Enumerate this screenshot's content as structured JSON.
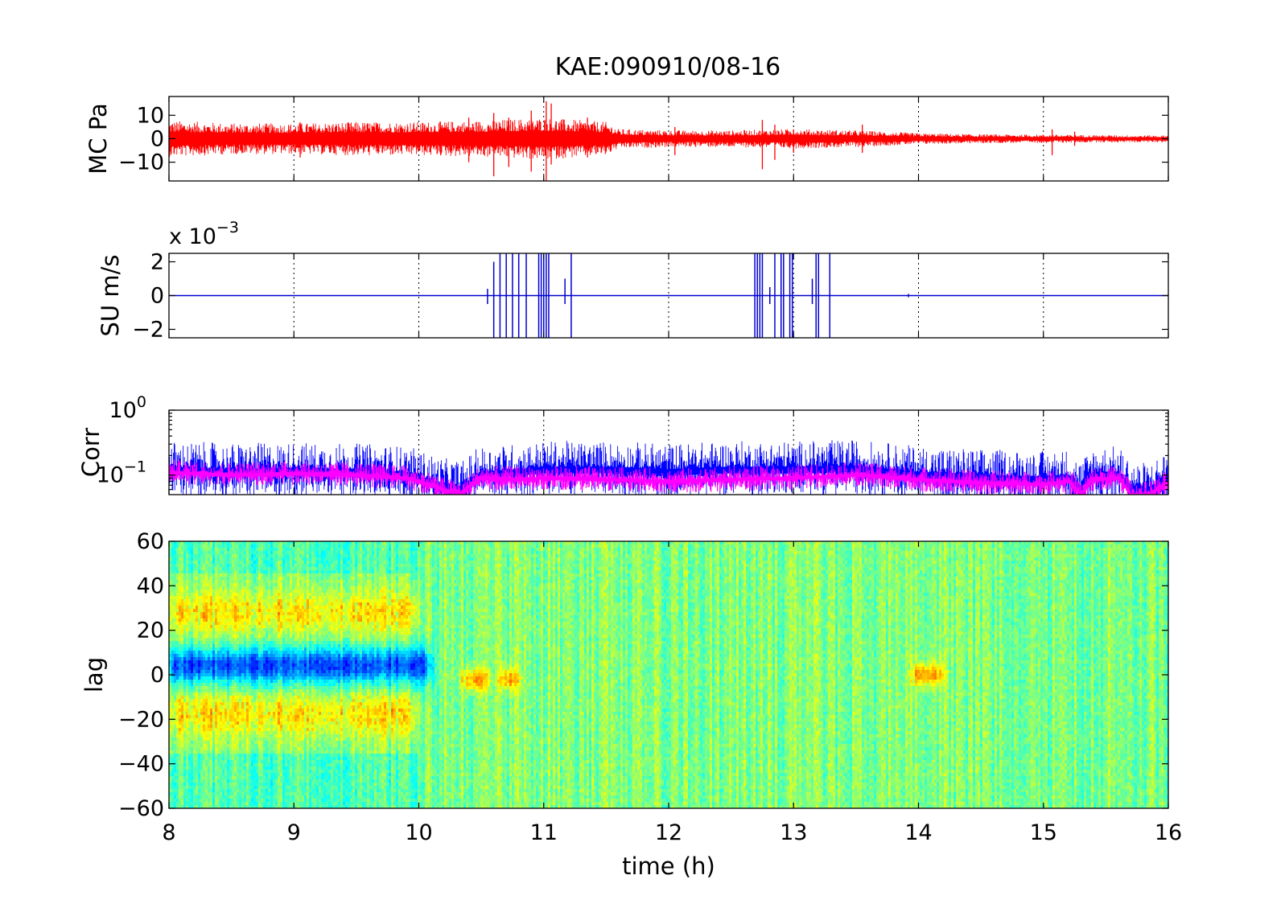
{
  "title": "KAE:090910/08-16",
  "xaxis": {
    "label": "time (h)",
    "range": [
      8,
      16
    ],
    "ticks": [
      "8",
      "9",
      "10",
      "11",
      "12",
      "13",
      "14",
      "15",
      "16"
    ]
  },
  "chart_data": [
    {
      "type": "line",
      "name": "mc-pressure-panel",
      "ylabel": "MC Pa",
      "ylim": [
        -18,
        18
      ],
      "yticks": [
        -10,
        0,
        10
      ],
      "yticklabels": [
        "−10",
        "0",
        "10"
      ],
      "grid": true,
      "color": "#ff0000",
      "envelope": {
        "x": [
          8.0,
          8.5,
          9.0,
          9.5,
          10.0,
          10.5,
          11.0,
          11.5,
          11.6,
          12.0,
          12.5,
          13.0,
          13.5,
          14.0,
          14.5,
          15.0,
          15.5,
          16.0
        ],
        "amplitude": [
          6.5,
          5.5,
          5.5,
          6.0,
          6.0,
          6.5,
          7.5,
          6.0,
          3.5,
          3.0,
          3.0,
          3.5,
          3.0,
          2.0,
          1.6,
          1.5,
          1.3,
          1.2
        ]
      },
      "spikes": [
        {
          "x": 9.05,
          "min": -8,
          "max": 7
        },
        {
          "x": 10.4,
          "min": -10,
          "max": 9
        },
        {
          "x": 10.6,
          "min": -16,
          "max": 11
        },
        {
          "x": 10.72,
          "min": -12,
          "max": 9
        },
        {
          "x": 10.9,
          "min": -14,
          "max": 12
        },
        {
          "x": 11.02,
          "min": -18,
          "max": 16
        },
        {
          "x": 11.06,
          "min": -11,
          "max": 15
        },
        {
          "x": 11.35,
          "min": -8,
          "max": 9
        },
        {
          "x": 12.05,
          "min": -7,
          "max": 5
        },
        {
          "x": 12.75,
          "min": -13,
          "max": 8
        },
        {
          "x": 12.85,
          "min": -9,
          "max": 6
        },
        {
          "x": 13.0,
          "min": -6,
          "max": 4
        },
        {
          "x": 13.55,
          "min": -6,
          "max": 6
        },
        {
          "x": 15.07,
          "min": -7,
          "max": 4
        },
        {
          "x": 15.25,
          "min": -3,
          "max": 3
        }
      ]
    },
    {
      "type": "line",
      "name": "su-velocity-panel",
      "ylabel": "SU m/s",
      "multiplier": "x 10",
      "multiplier_exponent": "−3",
      "ylim": [
        -0.0025,
        0.0025
      ],
      "yticks": [
        -0.002,
        0,
        0.002
      ],
      "yticklabels": [
        "−2",
        "0",
        "2"
      ],
      "grid": true,
      "color": "#0000d0",
      "bursts": [
        {
          "x": 10.55,
          "min": -0.0005,
          "max": 0.0004
        },
        {
          "x": 10.6,
          "min": -0.0025,
          "max": 0.002
        },
        {
          "x": 10.65,
          "min": -0.0025,
          "max": 0.0025
        },
        {
          "x": 10.7,
          "min": -0.0025,
          "max": 0.0025
        },
        {
          "x": 10.75,
          "min": -0.0025,
          "max": 0.0025
        },
        {
          "x": 10.8,
          "min": -0.0025,
          "max": 0.0025
        },
        {
          "x": 10.86,
          "min": -0.0025,
          "max": 0.0025
        },
        {
          "x": 10.96,
          "min": -0.0025,
          "max": 0.0025
        },
        {
          "x": 10.98,
          "min": -0.0025,
          "max": 0.0025
        },
        {
          "x": 11.0,
          "min": -0.0025,
          "max": 0.0025
        },
        {
          "x": 11.02,
          "min": -0.0025,
          "max": 0.0025
        },
        {
          "x": 11.04,
          "min": -0.0025,
          "max": 0.0025
        },
        {
          "x": 11.17,
          "min": -0.0005,
          "max": 0.001
        },
        {
          "x": 11.22,
          "min": -0.0025,
          "max": 0.0025
        },
        {
          "x": 12.69,
          "min": -0.0025,
          "max": 0.0025
        },
        {
          "x": 12.71,
          "min": -0.0025,
          "max": 0.0025
        },
        {
          "x": 12.73,
          "min": -0.0025,
          "max": 0.0025
        },
        {
          "x": 12.75,
          "min": -0.0025,
          "max": 0.0025
        },
        {
          "x": 12.81,
          "min": -0.0005,
          "max": 0.0005
        },
        {
          "x": 12.85,
          "min": -0.0025,
          "max": 0.0025
        },
        {
          "x": 12.9,
          "min": -0.0025,
          "max": 0.0025
        },
        {
          "x": 12.92,
          "min": -0.0025,
          "max": 0.0025
        },
        {
          "x": 12.97,
          "min": -0.0025,
          "max": 0.0025
        },
        {
          "x": 12.99,
          "min": -0.0025,
          "max": 0.0025
        },
        {
          "x": 13.15,
          "min": -0.0005,
          "max": 0.001
        },
        {
          "x": 13.18,
          "min": -0.0025,
          "max": 0.0025
        },
        {
          "x": 13.2,
          "min": -0.0025,
          "max": 0.0025
        },
        {
          "x": 13.29,
          "min": -0.0025,
          "max": 0.0025
        },
        {
          "x": 13.92,
          "min": -0.0001,
          "max": 0.0001
        }
      ]
    },
    {
      "type": "line",
      "name": "corr-panel",
      "ylabel": "Corr",
      "yscale": "log",
      "ylim": [
        0.05,
        1
      ],
      "yticks": [
        0.1,
        1
      ],
      "yticklabel_base": "10",
      "yticklabel_exponents": [
        "−1",
        "0"
      ],
      "grid": true,
      "series": [
        {
          "color": "#0000ff",
          "x": [
            8.0,
            8.5,
            9.0,
            9.5,
            9.9,
            10.1,
            10.2,
            10.35,
            10.5,
            10.8,
            11.0,
            11.5,
            12.0,
            12.5,
            13.0,
            13.5,
            14.0,
            14.5,
            15.0,
            15.2,
            15.3,
            15.4,
            15.6,
            15.7,
            15.85,
            16.0
          ],
          "y": [
            0.12,
            0.11,
            0.115,
            0.11,
            0.1,
            0.075,
            0.065,
            0.06,
            0.1,
            0.11,
            0.12,
            0.12,
            0.11,
            0.12,
            0.12,
            0.125,
            0.1,
            0.09,
            0.085,
            0.09,
            0.06,
            0.1,
            0.1,
            0.06,
            0.055,
            0.09
          ]
        },
        {
          "color": "#ff00ff",
          "x": [
            8.0,
            8.5,
            9.0,
            9.5,
            9.9,
            10.1,
            10.2,
            10.35,
            10.5,
            10.8,
            11.0,
            11.5,
            12.0,
            12.5,
            13.0,
            13.5,
            14.0,
            14.5,
            15.0,
            15.2,
            15.3,
            15.4,
            15.6,
            15.7,
            15.85,
            16.0
          ],
          "y": [
            0.11,
            0.1,
            0.105,
            0.1,
            0.09,
            0.07,
            0.058,
            0.052,
            0.09,
            0.085,
            0.09,
            0.085,
            0.08,
            0.085,
            0.09,
            0.1,
            0.085,
            0.075,
            0.072,
            0.08,
            0.05,
            0.085,
            0.09,
            0.05,
            0.05,
            0.075
          ]
        }
      ]
    },
    {
      "type": "heatmap",
      "name": "lag-panel",
      "ylabel": "lag",
      "ylim": [
        -60,
        60
      ],
      "yticks": [
        -60,
        -40,
        -20,
        0,
        20,
        40,
        60
      ],
      "yticklabels": [
        "−60",
        "−40",
        "−20",
        "0",
        "20",
        "40",
        "60"
      ],
      "colormap": "jet",
      "features": [
        {
          "kind": "negative-band",
          "x": [
            8.0,
            10.1
          ],
          "lag": 4,
          "halfwidth": 8
        },
        {
          "kind": "positive-band",
          "x": [
            8.0,
            10.0
          ],
          "lag": 28,
          "halfwidth": 10
        },
        {
          "kind": "positive-band",
          "x": [
            8.0,
            10.0
          ],
          "lag": -18,
          "halfwidth": 10
        },
        {
          "kind": "positive-spot",
          "x": [
            10.35,
            10.55
          ],
          "lag": -2,
          "halfwidth": 5
        },
        {
          "kind": "positive-spot",
          "x": [
            10.65,
            10.8
          ],
          "lag": -2,
          "halfwidth": 5
        },
        {
          "kind": "positive-spot",
          "x": [
            13.95,
            14.2
          ],
          "lag": 0,
          "halfwidth": 5
        }
      ]
    }
  ]
}
